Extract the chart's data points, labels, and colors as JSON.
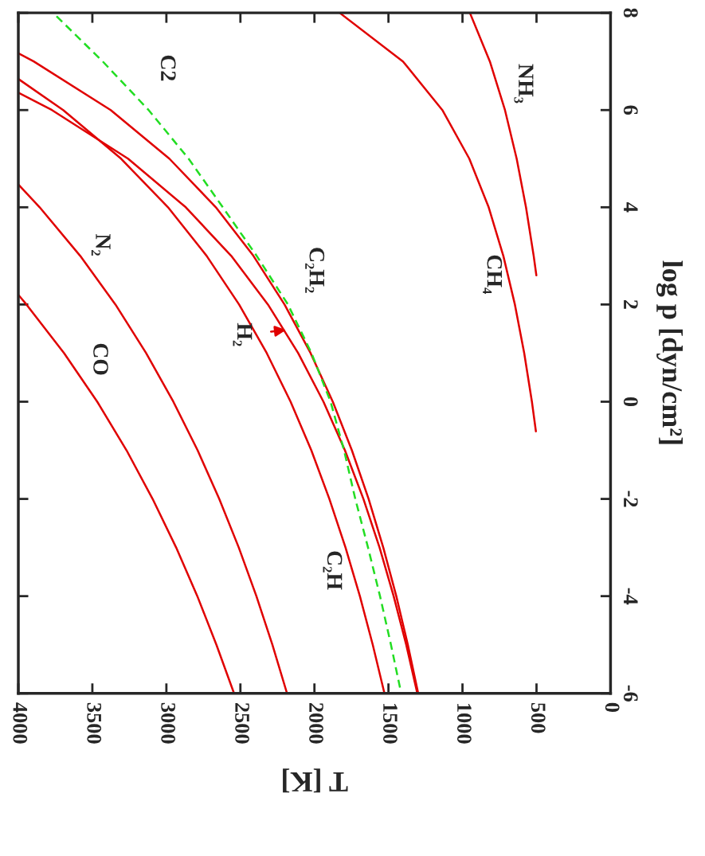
{
  "chart_data": {
    "type": "line",
    "xlabel": "T [K]",
    "ylabel": "log p [dyn/cm²]",
    "xlim": [
      4000,
      0
    ],
    "xticks": [
      4000,
      3500,
      3000,
      2500,
      2000,
      1500,
      1000,
      500,
      0
    ],
    "ylim": [
      -6,
      8
    ],
    "yticks": [
      -6,
      -4,
      -2,
      0,
      2,
      4,
      6,
      8
    ],
    "legend": false,
    "grid": false,
    "marker": "none",
    "series": [
      {
        "color": "#e00000",
        "line_style": "solid",
        "x": [
          4000,
          3945,
          3691,
          3467,
          3269,
          3093,
          2934,
          2791,
          2662,
          2543
        ],
        "values": [
          2.2,
          2,
          1,
          0,
          -1,
          -2,
          -3,
          -4,
          -5,
          -6
        ]
      },
      {
        "color": "#e00000",
        "line_style": "solid",
        "x": [
          4000,
          3856,
          3582,
          3344,
          3137,
          2953,
          2789,
          2643,
          2511,
          2392,
          2284,
          2185
        ],
        "values": [
          4.47,
          4,
          3,
          2,
          1,
          0,
          -1,
          -2,
          -3,
          -4,
          -5,
          -6
        ]
      },
      {
        "color": "#e00000",
        "line_style": "solid",
        "x": [
          4000,
          3697,
          3306,
          2989,
          2728,
          2509,
          2322,
          2161,
          2021,
          1899,
          1790,
          1693,
          1606,
          1527
        ],
        "values": [
          6.64,
          6,
          5,
          4,
          3,
          2,
          1,
          0,
          -1,
          -2,
          -3,
          -4,
          -5,
          -6
        ]
      },
      {
        "color": "#e00000",
        "line_style": "solid",
        "x": [
          4000,
          3773,
          3259,
          2869,
          2562,
          2314,
          2110,
          1939,
          1794,
          1669,
          1560,
          1465,
          1380,
          1305
        ],
        "values": [
          6.36,
          6,
          5,
          4,
          3,
          2,
          1,
          0,
          -1,
          -2,
          -3,
          -4,
          -5,
          -6
        ]
      },
      {
        "color": "#e00000",
        "line_style": "solid",
        "x": [
          4000,
          3896,
          3376,
          2980,
          2666,
          2412,
          2202,
          2026,
          1876,
          1747,
          1634,
          1535,
          1447,
          1369,
          1299
        ],
        "values": [
          7.17,
          7,
          6,
          5,
          4,
          3,
          2,
          1,
          0,
          -1,
          -2,
          -3,
          -4,
          -5,
          -6
        ]
      },
      {
        "color": "#22dd22",
        "line_style": "dashed",
        "x": [
          3742,
          3430,
          3120,
          2850,
          2619,
          2390,
          2179,
          2020,
          1891,
          1800,
          1724,
          1638,
          1557,
          1483,
          1414
        ],
        "values": [
          7.93,
          7,
          6,
          5,
          4,
          3,
          2,
          1,
          0,
          -1,
          -2,
          -3,
          -4,
          -5,
          -6
        ]
      },
      {
        "color": "#e00000",
        "line_style": "solid",
        "x": [
          1830,
          1402,
          1136,
          954,
          823,
          724,
          646,
          583,
          531,
          504
        ],
        "values": [
          8,
          7,
          6,
          5,
          4,
          3,
          2,
          1,
          0,
          -0.61
        ]
      },
      {
        "color": "#e00000",
        "line_style": "solid",
        "x": [
          950,
          815,
          713,
          634,
          571,
          519,
          501
        ],
        "values": [
          8,
          7,
          6,
          5,
          4,
          3,
          2.6
        ]
      }
    ],
    "annotations": [
      "CO",
      "N₂",
      "H₂",
      "C₂H₂",
      "C2",
      "NH₃",
      "CH₄",
      "C₂H"
    ]
  }
}
